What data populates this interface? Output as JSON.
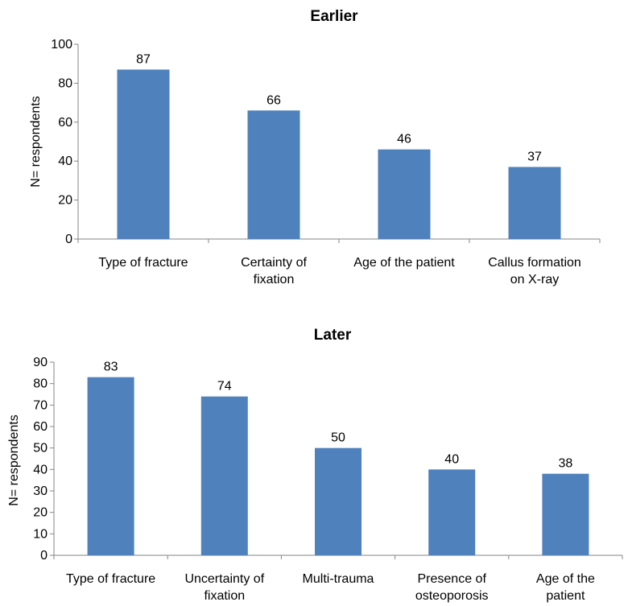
{
  "colors": {
    "bar": "#4f81bd",
    "axis": "#868686",
    "text": "#000000",
    "background": "#ffffff"
  },
  "chart_data": [
    {
      "type": "bar",
      "title": "Earlier",
      "xlabel": "",
      "ylabel": "N= respondents",
      "ylim": [
        0,
        100
      ],
      "yticks": [
        0,
        20,
        40,
        60,
        80,
        100
      ],
      "grid": false,
      "legend": "none",
      "categories": [
        [
          "Type of fracture"
        ],
        [
          "Certainty of",
          "fixation"
        ],
        [
          "Age of the patient"
        ],
        [
          "Callus formation",
          "on X-ray"
        ]
      ],
      "values": [
        87,
        66,
        46,
        37
      ],
      "data_labels": [
        "87",
        "66",
        "46",
        "37"
      ]
    },
    {
      "type": "bar",
      "title": "Later",
      "xlabel": "",
      "ylabel": "N= respondents",
      "ylim": [
        0,
        90
      ],
      "yticks": [
        0,
        10,
        20,
        30,
        40,
        50,
        60,
        70,
        80,
        90
      ],
      "grid": false,
      "legend": "none",
      "categories": [
        [
          "Type of fracture"
        ],
        [
          "Uncertainty of",
          "fixation"
        ],
        [
          "Multi-trauma"
        ],
        [
          "Presence of",
          "osteoporosis"
        ],
        [
          "Age of the",
          "patient"
        ]
      ],
      "values": [
        83,
        74,
        50,
        40,
        38
      ],
      "data_labels": [
        "83",
        "74",
        "50",
        "40",
        "38"
      ]
    }
  ]
}
